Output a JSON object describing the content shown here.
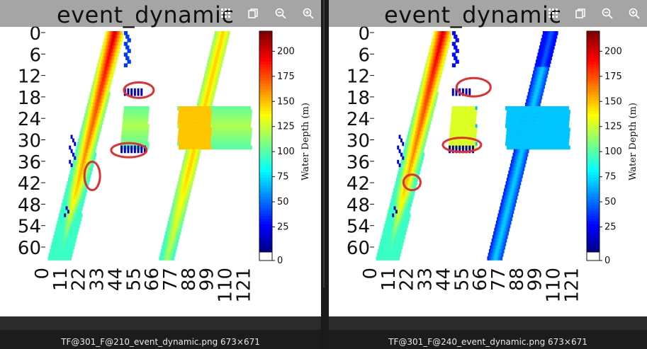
{
  "panes": [
    {
      "title": "event_dynamic",
      "caption": "TF@301_F@210_event_dynamic.png 673×671",
      "toolbar": [
        "grid-icon",
        "copy-icon",
        "zoom-out-icon",
        "zoom-in-icon"
      ]
    },
    {
      "title": "event_dynamic",
      "caption": "TF@301_F@240_event_dynamic.png 673×671",
      "toolbar": [
        "grid-icon",
        "copy-icon",
        "zoom-out-icon",
        "zoom-in-icon"
      ]
    }
  ],
  "chart_data": [
    {
      "type": "heatmap",
      "title": "event_dynamic",
      "yticks": [
        "0",
        "6",
        "12",
        "18",
        "24",
        "30",
        "36",
        "42",
        "48",
        "54",
        "60"
      ],
      "xticks": [
        "0",
        "11",
        "22",
        "33",
        "44",
        "55",
        "66",
        "77",
        "88",
        "99",
        "110",
        "121"
      ],
      "colorbar_label": "Water Depth (m)",
      "colorbar_ticks": [
        "0",
        "25",
        "50",
        "75",
        "100",
        "125",
        "150",
        "175",
        "200"
      ],
      "colorbar_range": [
        0,
        220
      ],
      "colormap": "jet",
      "highlight_color": "#e03030"
    },
    {
      "type": "heatmap",
      "title": "event_dynamic",
      "yticks": [
        "0",
        "6",
        "12",
        "18",
        "24",
        "30",
        "36",
        "42",
        "48",
        "54",
        "60"
      ],
      "xticks": [
        "0",
        "11",
        "22",
        "33",
        "44",
        "55",
        "66",
        "77",
        "88",
        "99",
        "110",
        "121"
      ],
      "colorbar_label": "Water Depth (m)",
      "colorbar_ticks": [
        "0",
        "25",
        "50",
        "75",
        "100",
        "125",
        "150",
        "175",
        "200"
      ],
      "colorbar_range": [
        0,
        220
      ],
      "colormap": "jet",
      "highlight_color": "#e03030"
    }
  ]
}
